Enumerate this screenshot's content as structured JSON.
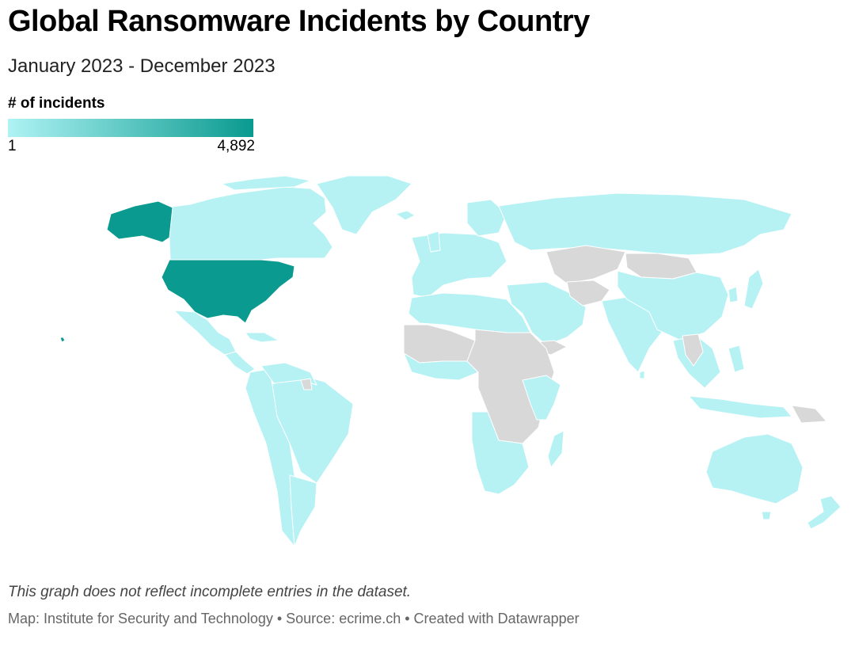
{
  "header": {
    "title": "Global Ransomware Incidents by Country",
    "subtitle": "January 2023 - December 2023"
  },
  "legend": {
    "title": "# of incidents",
    "min_label": "1",
    "max_label": "4,892",
    "min_value": 1,
    "max_value": 4892,
    "color_low": "#aef3f4",
    "color_high": "#0a9a8f",
    "no_data_color": "#d8d8d8"
  },
  "note": "This graph does not reflect incomplete entries in the dataset.",
  "footer": "Map: Institute for Security and Technology • Source: ecrime.ch • Created with Datawrapper"
}
